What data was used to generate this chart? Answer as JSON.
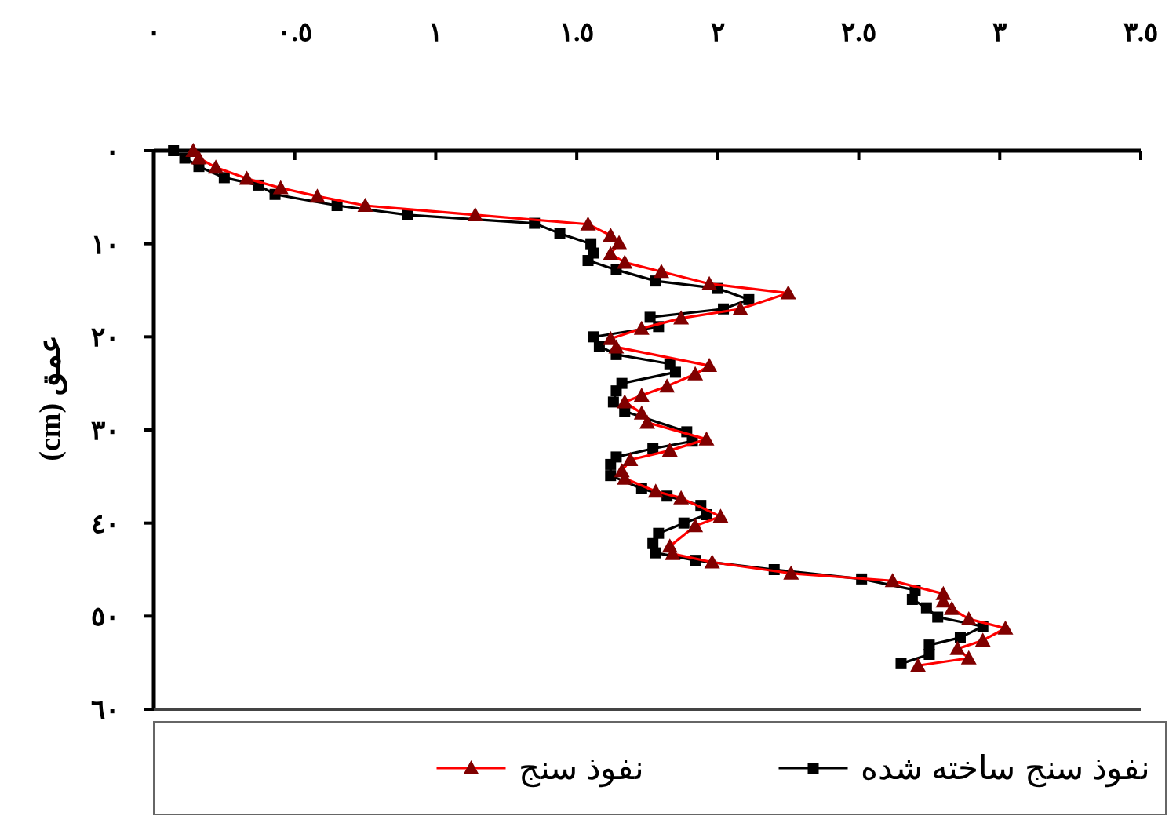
{
  "chart_data": {
    "type": "line",
    "ylabel": "عمق (cm)",
    "xlim": [
      0,
      3.5
    ],
    "ylim": [
      60,
      0
    ],
    "xticks": [
      {
        "value": 0,
        "label": "٠"
      },
      {
        "value": 0.5,
        "label": "٠.٥"
      },
      {
        "value": 1,
        "label": "١"
      },
      {
        "value": 1.5,
        "label": "١.٥"
      },
      {
        "value": 2,
        "label": "٢"
      },
      {
        "value": 2.5,
        "label": "٢.٥"
      },
      {
        "value": 3,
        "label": "٣"
      },
      {
        "value": 3.5,
        "label": "٣.٥"
      }
    ],
    "yticks": [
      {
        "value": 0,
        "label": "٠"
      },
      {
        "value": 10,
        "label": "١٠"
      },
      {
        "value": 20,
        "label": "٢٠"
      },
      {
        "value": 30,
        "label": "٣٠"
      },
      {
        "value": 40,
        "label": "٤٠"
      },
      {
        "value": 50,
        "label": "٥٠"
      },
      {
        "value": 60,
        "label": "٦٠"
      }
    ],
    "grid": false,
    "legend": "bottom",
    "line_style": "solid",
    "series": [
      {
        "name": "نفوذ سنج ساخته شده",
        "color": "#000000",
        "marker": "square",
        "x": [
          0.07,
          0.11,
          0.16,
          0.25,
          0.37,
          0.43,
          0.65,
          0.9,
          1.35,
          1.44,
          1.55,
          1.56,
          1.54,
          1.64,
          1.78,
          2.0,
          2.11,
          2.02,
          1.76,
          1.79,
          1.56,
          1.58,
          1.64,
          1.83,
          1.85,
          1.66,
          1.64,
          1.63,
          1.67,
          1.89,
          1.91,
          1.77,
          1.64,
          1.62,
          1.62,
          1.73,
          1.82,
          1.94,
          1.96,
          1.88,
          1.79,
          1.77,
          1.78,
          1.92,
          2.2,
          2.51,
          2.7,
          2.69,
          2.74,
          2.78,
          2.94,
          2.86,
          2.75,
          2.75,
          2.65
        ],
        "values": [
          0,
          0.8,
          1.7,
          2.9,
          3.7,
          4.7,
          5.9,
          6.9,
          7.8,
          8.9,
          10,
          11,
          11.8,
          12.8,
          14,
          14.8,
          16,
          17,
          17.9,
          18.9,
          20,
          21,
          21.9,
          22.9,
          23.8,
          25,
          25.8,
          27,
          28,
          30.2,
          31.2,
          32,
          32.9,
          33.7,
          34.9,
          36.3,
          37.1,
          38.1,
          39.1,
          40,
          41.1,
          42.2,
          43.2,
          44,
          45,
          46,
          47.2,
          48.2,
          49.1,
          50.1,
          51.1,
          52.3,
          53.1,
          54.1,
          55.1
        ]
      },
      {
        "name": "نفوذ سنج",
        "color": "#ff0000",
        "marker": "triangle",
        "x": [
          0.14,
          0.16,
          0.22,
          0.33,
          0.45,
          0.58,
          0.75,
          1.14,
          1.54,
          1.62,
          1.65,
          1.62,
          1.67,
          1.8,
          1.97,
          2.25,
          2.08,
          1.87,
          1.73,
          1.62,
          1.64,
          1.97,
          1.92,
          1.82,
          1.73,
          1.67,
          1.73,
          1.75,
          1.96,
          1.83,
          1.69,
          1.66,
          1.67,
          1.78,
          1.87,
          2.01,
          1.92,
          1.83,
          1.84,
          1.98,
          2.26,
          2.62,
          2.8,
          2.8,
          2.83,
          2.89,
          3.02,
          2.94,
          2.85,
          2.89,
          2.71
        ],
        "values": [
          0,
          0.8,
          1.8,
          3,
          4,
          4.9,
          5.9,
          6.9,
          7.9,
          9.1,
          9.9,
          11.1,
          12,
          13,
          14.3,
          15.3,
          17,
          18,
          19.1,
          20.2,
          21.1,
          23.1,
          24,
          25.3,
          26.3,
          27,
          28.2,
          29.2,
          31,
          32.2,
          33.2,
          34.4,
          35.2,
          36.6,
          37.3,
          39.3,
          40.3,
          42.5,
          43.3,
          44.2,
          45.4,
          46.2,
          47.6,
          48.4,
          49.2,
          50.3,
          51.3,
          52.6,
          53.5,
          54.5,
          55.3
        ]
      }
    ]
  }
}
